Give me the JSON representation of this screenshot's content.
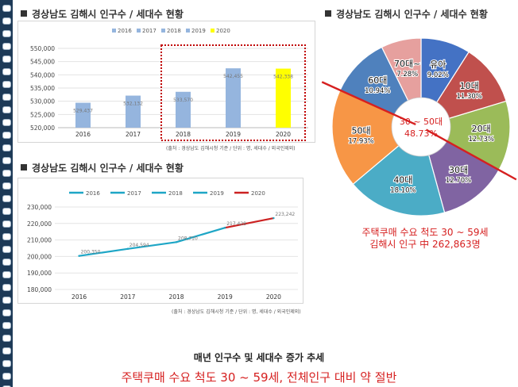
{
  "bar_section": {
    "title": "경상남도 김해시 인구수 / 세대수 현황",
    "source": "(출처 : 경상남도 김해시청 기준 / 단위 : 명, 세대수 / 외국인제외)"
  },
  "line_section": {
    "title": "경상남도 김해시 인구수 / 세대수 현황",
    "source": "(출처 : 경상남도 김해시청 기준 / 단위 : 명, 세대수 / 외국인제외)"
  },
  "pie_section": {
    "title": "경상남도 김해시 인구수 / 세대수 현황",
    "center_line1": "30 ~ 50대",
    "center_line2": "48.73%",
    "note_line1": "주택쿠매 수요 척도 30 ~ 59세",
    "note_line2": "김해시 인구 中 262,863명"
  },
  "footer": {
    "subtitle": "매년 인구수 및 세대수 증가 추세",
    "headline": "주택쿠매 수요 척도 30 ~ 59세, 전체인구 대비 약 절반"
  },
  "colors": {
    "bar_default": "#95b5de",
    "bar_highlight": "#ffff00",
    "highlight_box": "#c00000",
    "line_main": "#1ea6c6",
    "line_recent": "#cc2222",
    "accent_red": "#d62020"
  },
  "chart_data": [
    {
      "type": "bar",
      "categories": [
        "2016",
        "2017",
        "2018",
        "2019",
        "2020"
      ],
      "series": [
        {
          "name": "2016",
          "values": [
            529437,
            null,
            null,
            null,
            null
          ],
          "color": "#95b5de"
        },
        {
          "name": "2017",
          "values": [
            null,
            532132,
            null,
            null,
            null
          ],
          "color": "#95b5de"
        },
        {
          "name": "2018",
          "values": [
            null,
            null,
            533570,
            null,
            null
          ],
          "color": "#95b5de"
        },
        {
          "name": "2019",
          "values": [
            null,
            null,
            null,
            542455,
            null
          ],
          "color": "#95b5de"
        },
        {
          "name": "2020",
          "values": [
            null,
            null,
            null,
            null,
            542338
          ],
          "color": "#ffff00"
        }
      ],
      "data_labels": [
        "529,437",
        "532,132",
        "533,570",
        "542,455",
        "542,338"
      ],
      "y_ticks": [
        "520,000",
        "525,000",
        "530,000",
        "535,000",
        "540,000",
        "545,000",
        "550,000"
      ],
      "ylim": [
        520000,
        550000
      ],
      "legend": "top",
      "grid": true,
      "highlighted_categories": [
        "2018",
        "2019",
        "2020"
      ]
    },
    {
      "type": "line",
      "x": [
        "2016",
        "2017",
        "2018",
        "2019",
        "2020"
      ],
      "values": [
        200350,
        204594,
        208710,
        217428,
        223242
      ],
      "data_labels": [
        "200,350",
        "204,594",
        "208,710",
        "217,428",
        "223,242"
      ],
      "legend_entries": [
        "2016",
        "2017",
        "2018",
        "2019",
        "2020"
      ],
      "y_ticks": [
        "180,000",
        "190,000",
        "200,000",
        "210,000",
        "220,000",
        "230,000"
      ],
      "ylim": [
        180000,
        230000
      ],
      "legend": "top",
      "grid": true
    },
    {
      "type": "pie",
      "labels": [
        "유아",
        "10대",
        "20대",
        "30대",
        "40대",
        "50대",
        "60대",
        "70대~"
      ],
      "values": [
        9.02,
        11.3,
        12.73,
        12.7,
        18.1,
        17.93,
        10.94,
        7.28
      ],
      "value_labels": [
        "9.02%",
        "11.30%",
        "12.73%",
        "12.70%",
        "18.10%",
        "17.93%",
        "10.94%",
        "7.28%"
      ],
      "colors": [
        "#4472c4",
        "#c0504d",
        "#9bbb59",
        "#8064a2",
        "#4bacc6",
        "#f79646",
        "#4f81bd",
        "#e6a09e"
      ]
    }
  ]
}
